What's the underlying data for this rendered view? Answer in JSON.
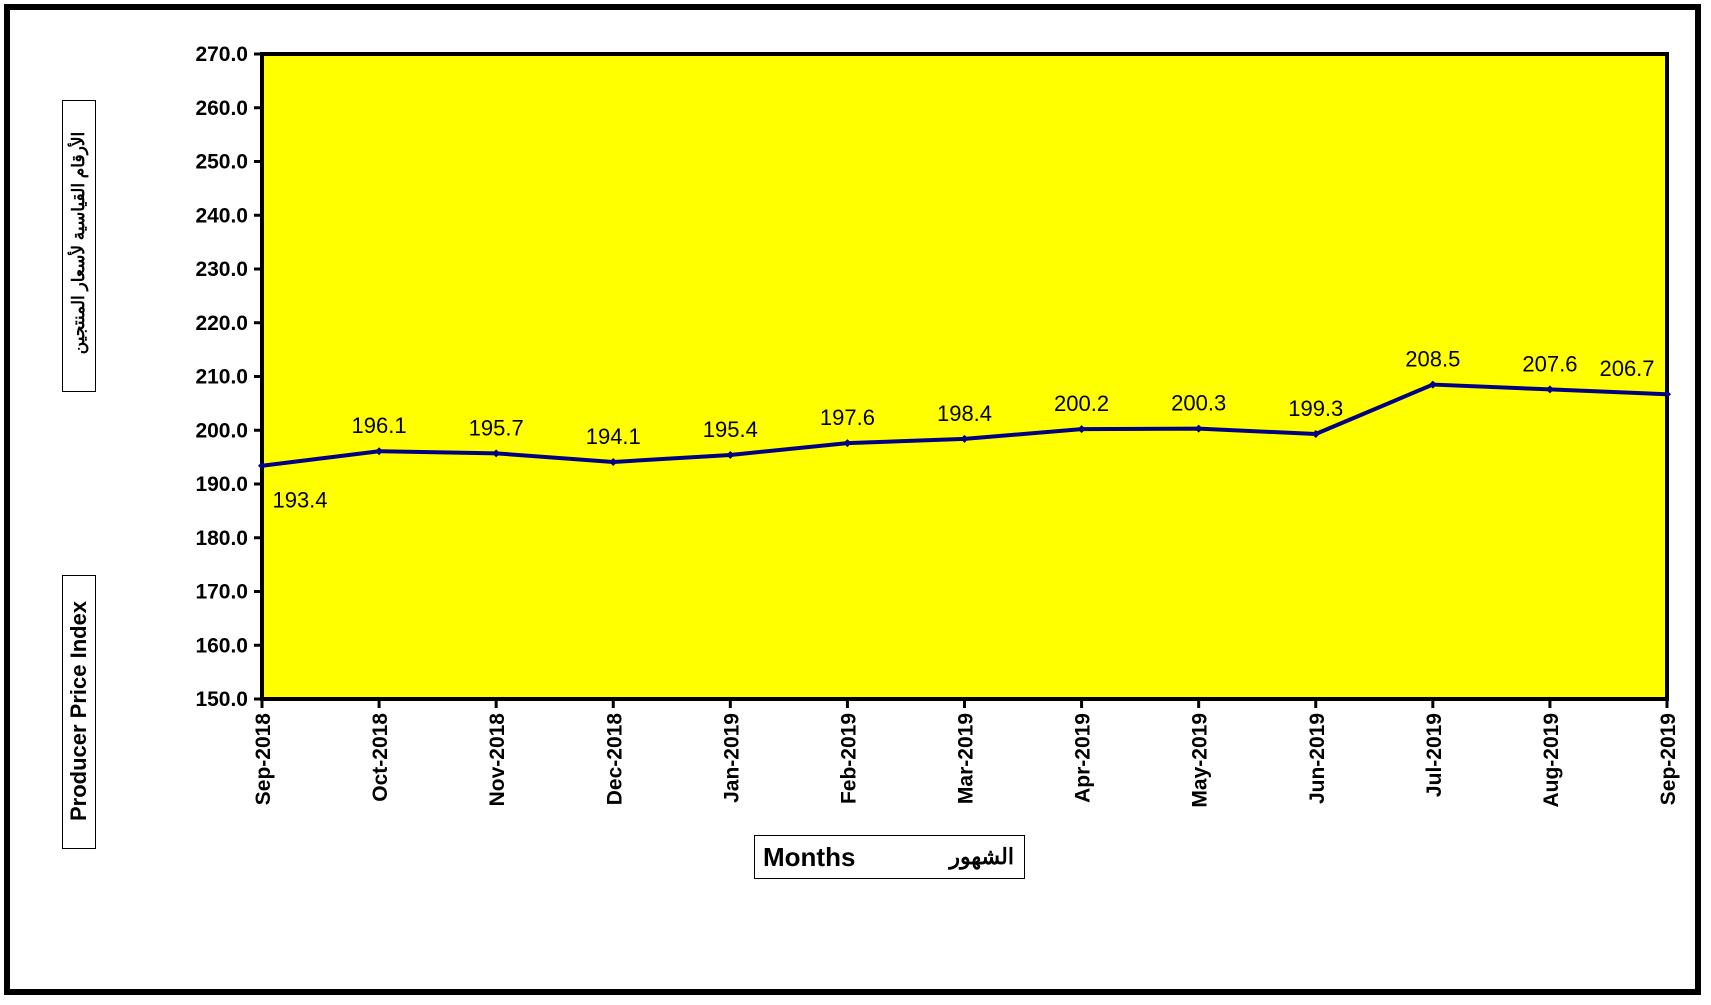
{
  "chart_data": {
    "type": "line",
    "categories": [
      "Sep-2018",
      "Oct-2018",
      "Nov-2018",
      "Dec-2018",
      "Jan-2019",
      "Feb-2019",
      "Mar-2019",
      "Apr-2019",
      "May-2019",
      "Jun-2019",
      "Jul-2019",
      "Aug-2019",
      "Sep-2019"
    ],
    "series": [
      {
        "values": [
          193.4,
          196.1,
          195.7,
          194.1,
          195.4,
          197.6,
          198.4,
          200.2,
          200.3,
          199.3,
          208.5,
          207.6,
          206.7
        ]
      }
    ],
    "data_labels": [
      "193.4",
      "196.1",
      "195.7",
      "194.1",
      "195.4",
      "197.6",
      "198.4",
      "200.2",
      "200.3",
      "199.3",
      "208.5",
      "207.6",
      "206.7"
    ],
    "yticks": [
      "150.0",
      "160.0",
      "170.0",
      "180.0",
      "190.0",
      "200.0",
      "210.0",
      "220.0",
      "230.0",
      "240.0",
      "250.0",
      "260.0",
      "270.0"
    ],
    "ylim": [
      150,
      270
    ],
    "ylabel_en": "Producer Price Index",
    "ylabel_ar": "الأرقام القياسية لأسعار المنتجين",
    "xlabel_en": "Months",
    "xlabel_ar": "الشهور",
    "colors": {
      "plot_background": "#ffff00",
      "line": "#000080",
      "frame": "#000000"
    },
    "grid": false,
    "legend": "none"
  }
}
